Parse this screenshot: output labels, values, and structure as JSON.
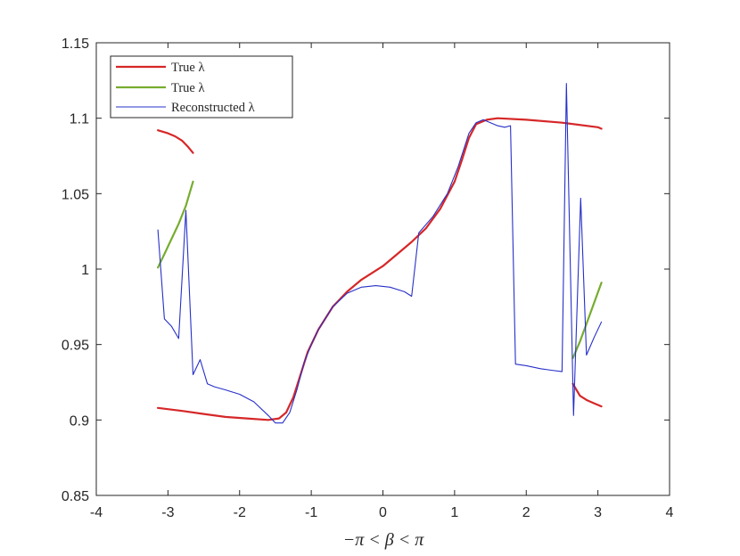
{
  "chart_data": {
    "type": "line",
    "xlabel": "−π < β < π",
    "ylabel": "",
    "xlim": [
      -4,
      4
    ],
    "ylim": [
      0.85,
      1.15
    ],
    "xticks": [
      "-4",
      "-3",
      "-2",
      "-1",
      "0",
      "1",
      "2",
      "3",
      "4"
    ],
    "yticks": [
      "0.85",
      "0.9",
      "0.95",
      "1",
      "1.05",
      "1.1",
      "1.15"
    ],
    "grid": false,
    "legend_position": "top-left",
    "series": [
      {
        "name": "True λ",
        "color": "#d62728",
        "segments": [
          [
            [
              -3.14,
              1.092
            ],
            [
              -3.0,
              1.09
            ],
            [
              -2.9,
              1.088
            ],
            [
              -2.8,
              1.085
            ],
            [
              -2.72,
              1.081
            ],
            [
              -2.65,
              1.077
            ]
          ],
          [
            [
              -3.14,
              0.908
            ],
            [
              -2.8,
              0.906
            ],
            [
              -2.5,
              0.904
            ],
            [
              -2.2,
              0.902
            ],
            [
              -1.9,
              0.901
            ],
            [
              -1.6,
              0.9
            ],
            [
              -1.45,
              0.901
            ],
            [
              -1.35,
              0.905
            ],
            [
              -1.25,
              0.915
            ],
            [
              -1.15,
              0.93
            ],
            [
              -1.05,
              0.945
            ],
            [
              -0.9,
              0.96
            ],
            [
              -0.7,
              0.975
            ],
            [
              -0.5,
              0.985
            ],
            [
              -0.3,
              0.993
            ],
            [
              0.0,
              1.002
            ],
            [
              0.2,
              1.01
            ],
            [
              0.4,
              1.018
            ],
            [
              0.6,
              1.027
            ],
            [
              0.8,
              1.04
            ],
            [
              1.0,
              1.058
            ],
            [
              1.1,
              1.072
            ],
            [
              1.2,
              1.087
            ],
            [
              1.3,
              1.096
            ],
            [
              1.45,
              1.099
            ],
            [
              1.6,
              1.1
            ],
            [
              2.0,
              1.099
            ],
            [
              2.5,
              1.097
            ],
            [
              3.0,
              1.094
            ],
            [
              3.05,
              1.093
            ]
          ],
          [
            [
              2.65,
              0.924
            ],
            [
              2.75,
              0.916
            ],
            [
              2.85,
              0.913
            ],
            [
              2.95,
              0.911
            ],
            [
              3.05,
              0.909
            ]
          ]
        ]
      },
      {
        "name": "True λ",
        "color": "#77ac30",
        "segments": [
          [
            [
              -3.14,
              1.001
            ],
            [
              -3.05,
              1.01
            ],
            [
              -2.95,
              1.02
            ],
            [
              -2.85,
              1.03
            ],
            [
              -2.75,
              1.042
            ],
            [
              -2.65,
              1.058
            ]
          ],
          [
            [
              2.65,
              0.941
            ],
            [
              2.75,
              0.952
            ],
            [
              2.85,
              0.965
            ],
            [
              2.95,
              0.978
            ],
            [
              3.05,
              0.991
            ]
          ]
        ]
      },
      {
        "name": "Reconstructed λ",
        "color": "#2630c8",
        "segments": [
          [
            [
              -3.14,
              1.026
            ],
            [
              -3.05,
              0.967
            ],
            [
              -2.95,
              0.962
            ],
            [
              -2.85,
              0.954
            ],
            [
              -2.75,
              1.039
            ],
            [
              -2.65,
              0.93
            ],
            [
              -2.55,
              0.94
            ],
            [
              -2.45,
              0.924
            ],
            [
              -2.35,
              0.922
            ],
            [
              -2.2,
              0.92
            ],
            [
              -2.0,
              0.917
            ],
            [
              -1.8,
              0.912
            ],
            [
              -1.6,
              0.903
            ],
            [
              -1.5,
              0.898
            ],
            [
              -1.4,
              0.898
            ],
            [
              -1.3,
              0.905
            ],
            [
              -1.2,
              0.92
            ],
            [
              -1.1,
              0.938
            ],
            [
              -1.0,
              0.95
            ],
            [
              -0.9,
              0.96
            ],
            [
              -0.7,
              0.975
            ],
            [
              -0.5,
              0.984
            ],
            [
              -0.3,
              0.988
            ],
            [
              -0.1,
              0.989
            ],
            [
              0.1,
              0.988
            ],
            [
              0.3,
              0.985
            ],
            [
              0.4,
              0.982
            ],
            [
              0.5,
              1.024
            ],
            [
              0.7,
              1.035
            ],
            [
              0.9,
              1.05
            ],
            [
              1.05,
              1.068
            ],
            [
              1.2,
              1.09
            ],
            [
              1.3,
              1.097
            ],
            [
              1.4,
              1.099
            ],
            [
              1.5,
              1.097
            ],
            [
              1.6,
              1.095
            ],
            [
              1.7,
              1.094
            ],
            [
              1.78,
              1.095
            ],
            [
              1.85,
              0.937
            ],
            [
              2.0,
              0.936
            ],
            [
              2.2,
              0.934
            ],
            [
              2.35,
              0.933
            ],
            [
              2.5,
              0.932
            ],
            [
              2.56,
              1.123
            ],
            [
              2.66,
              0.903
            ],
            [
              2.76,
              1.047
            ],
            [
              2.84,
              0.943
            ],
            [
              2.95,
              0.955
            ],
            [
              3.05,
              0.965
            ]
          ]
        ]
      }
    ]
  }
}
